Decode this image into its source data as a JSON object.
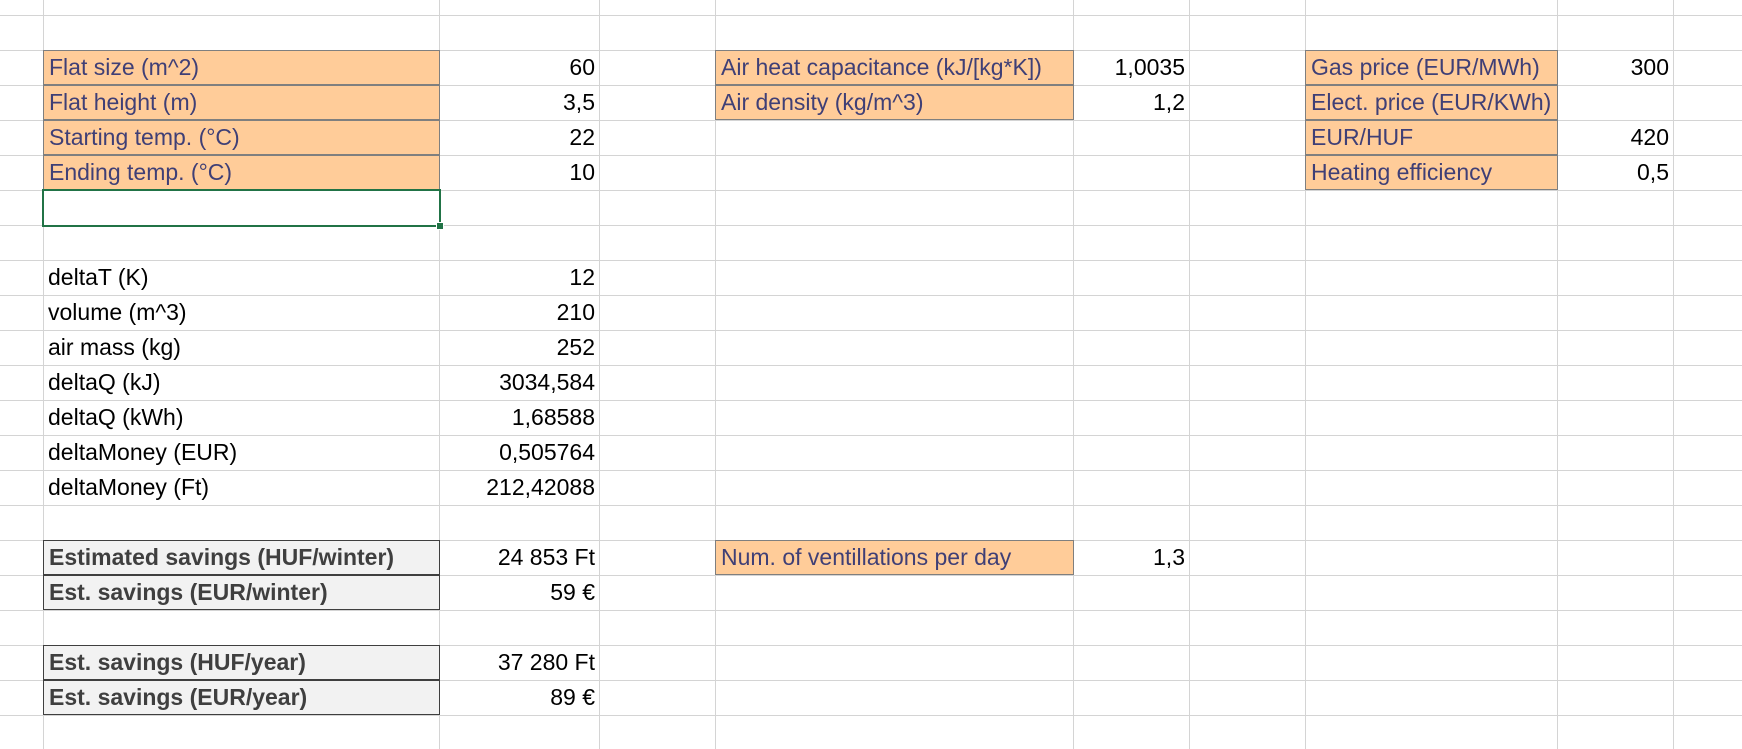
{
  "inputs_flat": [
    {
      "label": "Flat size (m^2)",
      "value": "60"
    },
    {
      "label": "Flat height (m)",
      "value": "3,5"
    },
    {
      "label": "Starting temp. (°C)",
      "value": "22"
    },
    {
      "label": "Ending temp. (°C)",
      "value": "10"
    }
  ],
  "inputs_air": [
    {
      "label": "Air heat capacitance (kJ/[kg*K])",
      "value": "1,0035"
    },
    {
      "label": "Air density (kg/m^3)",
      "value": "1,2"
    }
  ],
  "inputs_price": [
    {
      "label": "Gas price (EUR/MWh)",
      "value": "300"
    },
    {
      "label": "Elect. price (EUR/KWh)",
      "value": ""
    },
    {
      "label": "EUR/HUF",
      "value": "420"
    },
    {
      "label": "Heating efficiency",
      "value": "0,5"
    }
  ],
  "calculations": [
    {
      "label": "deltaT (K)",
      "value": "12"
    },
    {
      "label": "volume (m^3)",
      "value": "210"
    },
    {
      "label": "air mass (kg)",
      "value": "252"
    },
    {
      "label": "deltaQ (kJ)",
      "value": "3034,584"
    },
    {
      "label": "deltaQ (kWh)",
      "value": "1,68588"
    },
    {
      "label": "deltaMoney (EUR)",
      "value": "0,505764"
    },
    {
      "label": "deltaMoney (Ft)",
      "value": "212,42088"
    }
  ],
  "savings_winter": [
    {
      "label": "Estimated savings (HUF/winter)",
      "value": "24 853 Ft"
    },
    {
      "label": "Est. savings (EUR/winter)",
      "value": "59 €"
    }
  ],
  "ventilation": {
    "label": "Num. of ventillations per day",
    "value": "1,3"
  },
  "savings_year": [
    {
      "label": "Est. savings (HUF/year)",
      "value": "37 280 Ft"
    },
    {
      "label": "Est. savings (EUR/year)",
      "value": "89 €"
    }
  ]
}
